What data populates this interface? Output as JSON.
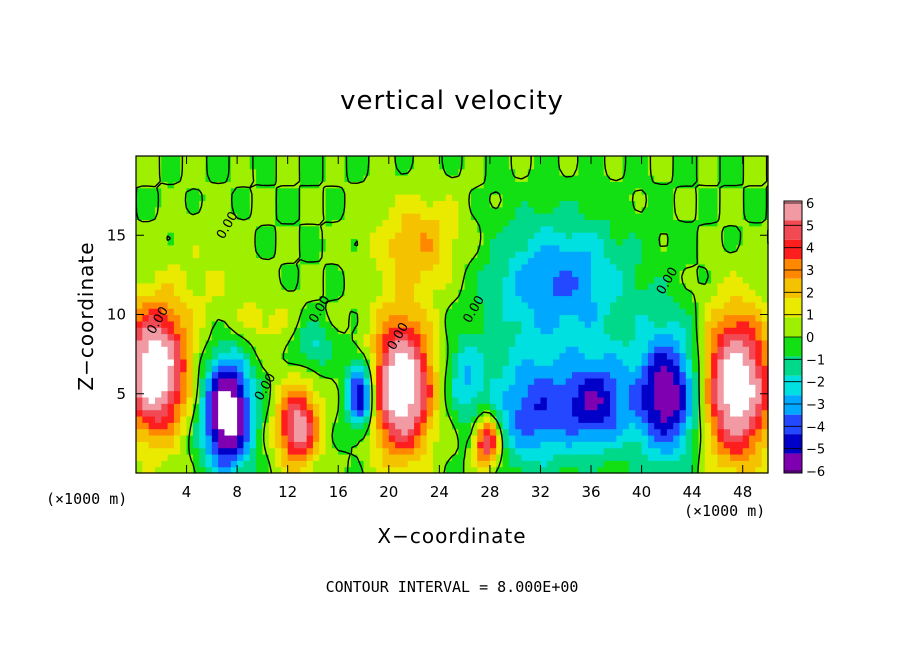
{
  "chart_data": {
    "type": "heatmap",
    "title": "vertical velocity",
    "xlabel": "X−coordinate",
    "ylabel": "Z−coordinate",
    "x_unit_left": "(×1000 m)",
    "x_unit_right": "(×1000 m)",
    "xlim": [
      0,
      50
    ],
    "ylim": [
      0,
      20
    ],
    "x_ticks": [
      4,
      8,
      12,
      16,
      20,
      24,
      28,
      32,
      36,
      40,
      44,
      48
    ],
    "y_ticks": [
      5,
      10,
      15
    ],
    "colorbar": {
      "min": -6,
      "max": 6,
      "ticks": [
        "6",
        "5",
        "4",
        "3",
        "2",
        "1",
        "0",
        "−1",
        "−2",
        "−3",
        "−4",
        "−5",
        "−6"
      ],
      "colors": [
        "#f29aa4",
        "#f24a54",
        "#ff1e1e",
        "#ff8800",
        "#f5c200",
        "#eaea00",
        "#9ef000",
        "#12e012",
        "#00d88a",
        "#00e0e0",
        "#00a8ff",
        "#2448ff",
        "#0000c8",
        "#7f00b0"
      ]
    },
    "contour_labels": [
      "0.00",
      "0.00",
      "0.00",
      "0.00",
      "0.00",
      "0.00",
      "0.00"
    ],
    "features": [
      {
        "x": 1.5,
        "z": 6.5,
        "sx": 2.5,
        "sz": 4.0,
        "v": 8
      },
      {
        "x": 7.2,
        "z": 3.8,
        "sx": 1.9,
        "sz": 3.5,
        "v": -8
      },
      {
        "x": 12.8,
        "z": 3.0,
        "sx": 1.6,
        "sz": 2.5,
        "v": 6
      },
      {
        "x": 17.8,
        "z": 5.0,
        "sx": 1.1,
        "sz": 2.2,
        "v": -6
      },
      {
        "x": 21.0,
        "z": 5.5,
        "sx": 2.4,
        "sz": 4.2,
        "v": 8
      },
      {
        "x": 27.8,
        "z": 2.0,
        "sx": 1.0,
        "sz": 1.6,
        "v": 6
      },
      {
        "x": 22.5,
        "z": 14.5,
        "sx": 3.5,
        "sz": 3.0,
        "v": 2.5
      },
      {
        "x": 33.5,
        "z": 12.0,
        "sx": 5.5,
        "sz": 4.0,
        "v": -3.5
      },
      {
        "x": 42.0,
        "z": 5.0,
        "sx": 2.6,
        "sz": 4.0,
        "v": -6
      },
      {
        "x": 31.5,
        "z": 4.0,
        "sx": 3.5,
        "sz": 3.5,
        "v": -4
      },
      {
        "x": 36.5,
        "z": 4.5,
        "sx": 2.5,
        "sz": 3.0,
        "v": -4.5
      },
      {
        "x": 47.5,
        "z": 5.5,
        "sx": 2.6,
        "sz": 4.5,
        "v": 8
      },
      {
        "x": 10.0,
        "z": 9.5,
        "sx": 2.5,
        "sz": 2.0,
        "v": 1.2
      },
      {
        "x": 5.5,
        "z": 12.0,
        "sx": 3.0,
        "sz": 4.0,
        "v": 0.8
      },
      {
        "x": 26.0,
        "z": 6.0,
        "sx": 1.5,
        "sz": 2.5,
        "v": -2.5
      },
      {
        "x": 14.0,
        "z": 8.0,
        "sx": 1.5,
        "sz": 1.5,
        "v": -2
      }
    ]
  },
  "contour_interval_text": "CONTOUR INTERVAL = 8.000E+00"
}
